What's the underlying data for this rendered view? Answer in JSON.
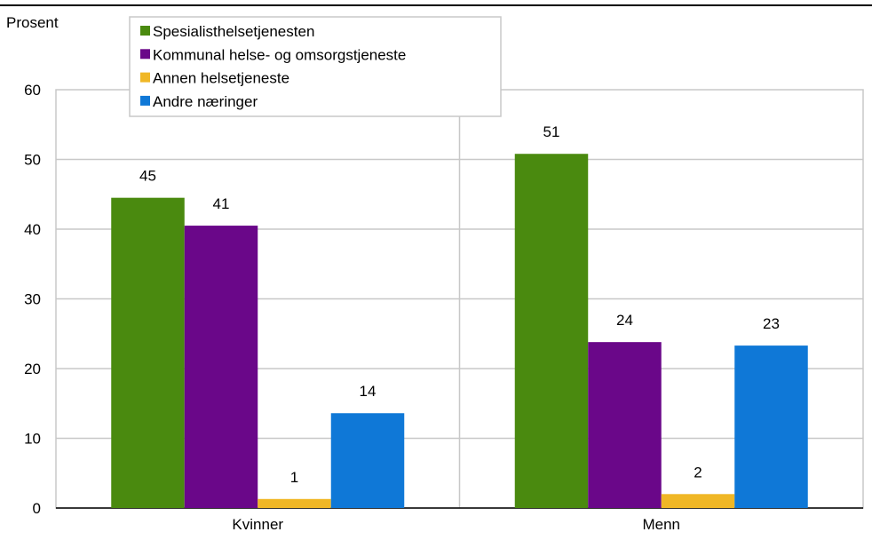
{
  "chart_data": {
    "type": "bar",
    "ylabel": "Prosent",
    "ylim": [
      0,
      60
    ],
    "yticks": [
      0,
      10,
      20,
      30,
      40,
      50,
      60
    ],
    "grid": true,
    "legend_position": "top-left",
    "categories": [
      "Kvinner",
      "Menn"
    ],
    "series": [
      {
        "name": "Spesialisthelsetjenesten",
        "values": [
          44.5,
          50.8
        ],
        "labels": [
          "45",
          "51"
        ],
        "color": "#4a8a0f"
      },
      {
        "name": "Kommunal helse- og omsorgstjeneste",
        "values": [
          40.5,
          23.8
        ],
        "labels": [
          "41",
          "24"
        ],
        "color": "#6a0789"
      },
      {
        "name": "Annen helsetjeneste",
        "values": [
          1.3,
          2.0
        ],
        "labels": [
          "1",
          "2"
        ],
        "color": "#f0b726"
      },
      {
        "name": "Andre næringer",
        "values": [
          13.6,
          23.3
        ],
        "labels": [
          "14",
          "23"
        ],
        "color": "#0f78d7"
      }
    ]
  }
}
